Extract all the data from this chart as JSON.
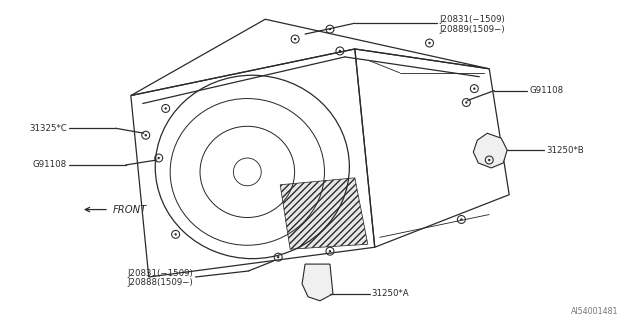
{
  "bg_color": "#ffffff",
  "line_color": "#2a2a2a",
  "text_color": "#2a2a2a",
  "diagram_id": "AI54001481",
  "figsize": [
    6.4,
    3.2
  ],
  "dpi": 100,
  "labels": {
    "top_bolt_line1": "J20831(−1509)",
    "top_bolt_line2": "J20889(1509−)",
    "right_g91108": "G91108",
    "right_spacer": "31250*B",
    "left_bolt": "31325*C",
    "left_g91108": "G91108",
    "front": "FRONT",
    "bottom_bolt_line1": "J20831(−1509)",
    "bottom_bolt_line2": "J20888(1509−)",
    "bottom_spacer": "31250*A"
  }
}
